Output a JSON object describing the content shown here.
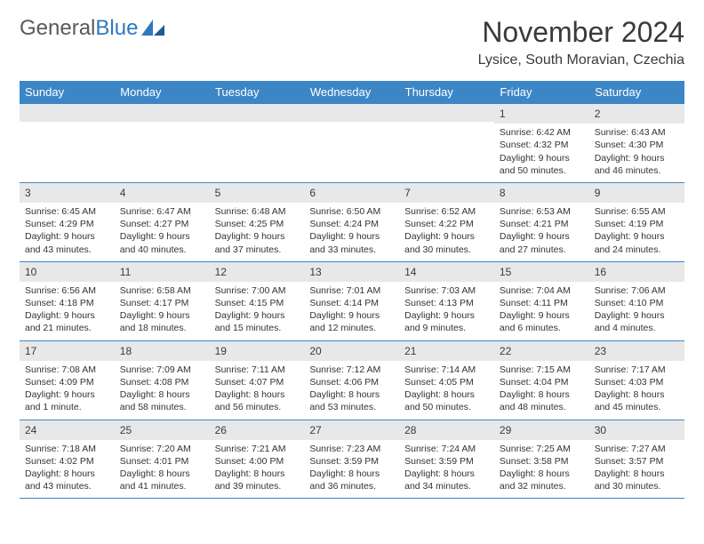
{
  "logo": {
    "text1": "General",
    "text2": "Blue"
  },
  "title": "November 2024",
  "location": "Lysice, South Moravian, Czechia",
  "colors": {
    "header_bg": "#3d86c6",
    "header_text": "#ffffff",
    "daynum_bg": "#e7e8e9",
    "border": "#3d86c6",
    "logo_gray": "#5a5a5a",
    "logo_blue": "#2f78bf"
  },
  "day_headers": [
    "Sunday",
    "Monday",
    "Tuesday",
    "Wednesday",
    "Thursday",
    "Friday",
    "Saturday"
  ],
  "weeks": [
    [
      {
        "n": "",
        "sr": "",
        "ss": "",
        "dl": ""
      },
      {
        "n": "",
        "sr": "",
        "ss": "",
        "dl": ""
      },
      {
        "n": "",
        "sr": "",
        "ss": "",
        "dl": ""
      },
      {
        "n": "",
        "sr": "",
        "ss": "",
        "dl": ""
      },
      {
        "n": "",
        "sr": "",
        "ss": "",
        "dl": ""
      },
      {
        "n": "1",
        "sr": "Sunrise: 6:42 AM",
        "ss": "Sunset: 4:32 PM",
        "dl": "Daylight: 9 hours and 50 minutes."
      },
      {
        "n": "2",
        "sr": "Sunrise: 6:43 AM",
        "ss": "Sunset: 4:30 PM",
        "dl": "Daylight: 9 hours and 46 minutes."
      }
    ],
    [
      {
        "n": "3",
        "sr": "Sunrise: 6:45 AM",
        "ss": "Sunset: 4:29 PM",
        "dl": "Daylight: 9 hours and 43 minutes."
      },
      {
        "n": "4",
        "sr": "Sunrise: 6:47 AM",
        "ss": "Sunset: 4:27 PM",
        "dl": "Daylight: 9 hours and 40 minutes."
      },
      {
        "n": "5",
        "sr": "Sunrise: 6:48 AM",
        "ss": "Sunset: 4:25 PM",
        "dl": "Daylight: 9 hours and 37 minutes."
      },
      {
        "n": "6",
        "sr": "Sunrise: 6:50 AM",
        "ss": "Sunset: 4:24 PM",
        "dl": "Daylight: 9 hours and 33 minutes."
      },
      {
        "n": "7",
        "sr": "Sunrise: 6:52 AM",
        "ss": "Sunset: 4:22 PM",
        "dl": "Daylight: 9 hours and 30 minutes."
      },
      {
        "n": "8",
        "sr": "Sunrise: 6:53 AM",
        "ss": "Sunset: 4:21 PM",
        "dl": "Daylight: 9 hours and 27 minutes."
      },
      {
        "n": "9",
        "sr": "Sunrise: 6:55 AM",
        "ss": "Sunset: 4:19 PM",
        "dl": "Daylight: 9 hours and 24 minutes."
      }
    ],
    [
      {
        "n": "10",
        "sr": "Sunrise: 6:56 AM",
        "ss": "Sunset: 4:18 PM",
        "dl": "Daylight: 9 hours and 21 minutes."
      },
      {
        "n": "11",
        "sr": "Sunrise: 6:58 AM",
        "ss": "Sunset: 4:17 PM",
        "dl": "Daylight: 9 hours and 18 minutes."
      },
      {
        "n": "12",
        "sr": "Sunrise: 7:00 AM",
        "ss": "Sunset: 4:15 PM",
        "dl": "Daylight: 9 hours and 15 minutes."
      },
      {
        "n": "13",
        "sr": "Sunrise: 7:01 AM",
        "ss": "Sunset: 4:14 PM",
        "dl": "Daylight: 9 hours and 12 minutes."
      },
      {
        "n": "14",
        "sr": "Sunrise: 7:03 AM",
        "ss": "Sunset: 4:13 PM",
        "dl": "Daylight: 9 hours and 9 minutes."
      },
      {
        "n": "15",
        "sr": "Sunrise: 7:04 AM",
        "ss": "Sunset: 4:11 PM",
        "dl": "Daylight: 9 hours and 6 minutes."
      },
      {
        "n": "16",
        "sr": "Sunrise: 7:06 AM",
        "ss": "Sunset: 4:10 PM",
        "dl": "Daylight: 9 hours and 4 minutes."
      }
    ],
    [
      {
        "n": "17",
        "sr": "Sunrise: 7:08 AM",
        "ss": "Sunset: 4:09 PM",
        "dl": "Daylight: 9 hours and 1 minute."
      },
      {
        "n": "18",
        "sr": "Sunrise: 7:09 AM",
        "ss": "Sunset: 4:08 PM",
        "dl": "Daylight: 8 hours and 58 minutes."
      },
      {
        "n": "19",
        "sr": "Sunrise: 7:11 AM",
        "ss": "Sunset: 4:07 PM",
        "dl": "Daylight: 8 hours and 56 minutes."
      },
      {
        "n": "20",
        "sr": "Sunrise: 7:12 AM",
        "ss": "Sunset: 4:06 PM",
        "dl": "Daylight: 8 hours and 53 minutes."
      },
      {
        "n": "21",
        "sr": "Sunrise: 7:14 AM",
        "ss": "Sunset: 4:05 PM",
        "dl": "Daylight: 8 hours and 50 minutes."
      },
      {
        "n": "22",
        "sr": "Sunrise: 7:15 AM",
        "ss": "Sunset: 4:04 PM",
        "dl": "Daylight: 8 hours and 48 minutes."
      },
      {
        "n": "23",
        "sr": "Sunrise: 7:17 AM",
        "ss": "Sunset: 4:03 PM",
        "dl": "Daylight: 8 hours and 45 minutes."
      }
    ],
    [
      {
        "n": "24",
        "sr": "Sunrise: 7:18 AM",
        "ss": "Sunset: 4:02 PM",
        "dl": "Daylight: 8 hours and 43 minutes."
      },
      {
        "n": "25",
        "sr": "Sunrise: 7:20 AM",
        "ss": "Sunset: 4:01 PM",
        "dl": "Daylight: 8 hours and 41 minutes."
      },
      {
        "n": "26",
        "sr": "Sunrise: 7:21 AM",
        "ss": "Sunset: 4:00 PM",
        "dl": "Daylight: 8 hours and 39 minutes."
      },
      {
        "n": "27",
        "sr": "Sunrise: 7:23 AM",
        "ss": "Sunset: 3:59 PM",
        "dl": "Daylight: 8 hours and 36 minutes."
      },
      {
        "n": "28",
        "sr": "Sunrise: 7:24 AM",
        "ss": "Sunset: 3:59 PM",
        "dl": "Daylight: 8 hours and 34 minutes."
      },
      {
        "n": "29",
        "sr": "Sunrise: 7:25 AM",
        "ss": "Sunset: 3:58 PM",
        "dl": "Daylight: 8 hours and 32 minutes."
      },
      {
        "n": "30",
        "sr": "Sunrise: 7:27 AM",
        "ss": "Sunset: 3:57 PM",
        "dl": "Daylight: 8 hours and 30 minutes."
      }
    ]
  ]
}
